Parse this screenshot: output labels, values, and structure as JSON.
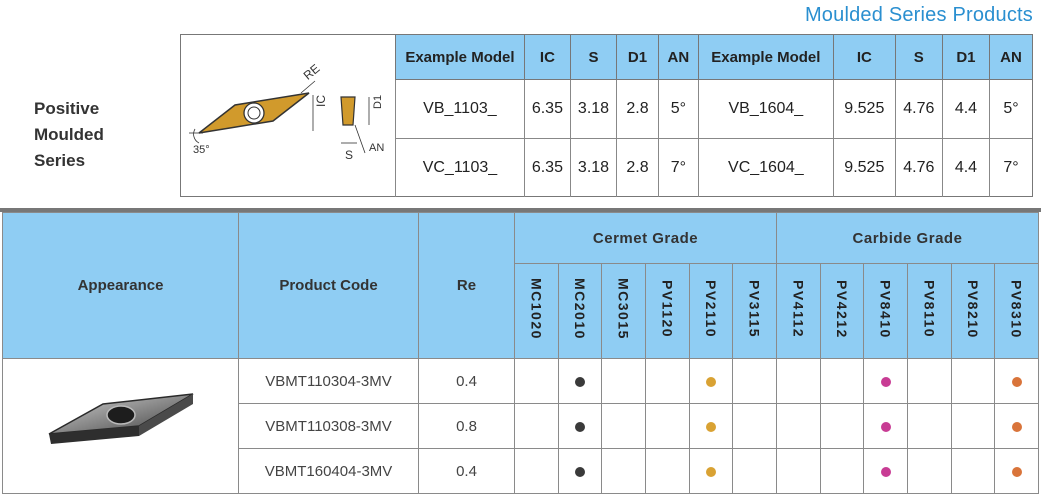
{
  "page_title": "Moulded Series Products",
  "series_label": [
    "Positive",
    "Moulded",
    "Series"
  ],
  "diagram": {
    "labels": {
      "re": "RE",
      "ic": "IC",
      "d1": "D1",
      "an": "AN",
      "s": "S",
      "angle": "35°"
    },
    "insert_color": "#d19a2c"
  },
  "spec_table": {
    "headers": [
      "Example Model",
      "IC",
      "S",
      "D1",
      "AN",
      "Example Model",
      "IC",
      "S",
      "D1",
      "AN"
    ],
    "rows": [
      [
        "VB_1103_",
        "6.35",
        "3.18",
        "2.8",
        "5°",
        "VB_1604_",
        "9.525",
        "4.76",
        "4.4",
        "5°"
      ],
      [
        "VC_1103_",
        "6.35",
        "3.18",
        "2.8",
        "7°",
        "VC_1604_",
        "9.525",
        "4.76",
        "4.4",
        "7°"
      ]
    ]
  },
  "grade_table": {
    "headers": {
      "appearance": "Appearance",
      "product_code": "Product Code",
      "re": "Re"
    },
    "groups": [
      "Cermet Grade",
      "Carbide Grade"
    ],
    "grades": [
      "MC1020",
      "MC2010",
      "MC3015",
      "PV1120",
      "PV2110",
      "PV3115",
      "PV4112",
      "PV4212",
      "PV8410",
      "PV8110",
      "PV8210",
      "PV8310"
    ],
    "rows": [
      {
        "code": "VBMT110304-3MV",
        "re": "0.4"
      },
      {
        "code": "VBMT110308-3MV",
        "re": "0.8"
      },
      {
        "code": "VBMT160404-3MV",
        "re": "0.4"
      }
    ],
    "marks": [
      {
        "grade": "MC2010",
        "color": "#3a3a3a"
      },
      {
        "grade": "PV2110",
        "color": "#d9a233"
      },
      {
        "grade": "PV8410",
        "color": "#c83c94"
      },
      {
        "grade": "PV8310",
        "color": "#d9743a"
      }
    ]
  },
  "colors": {
    "header_bg": "#8fcdf3",
    "title": "#2a8fd0"
  }
}
